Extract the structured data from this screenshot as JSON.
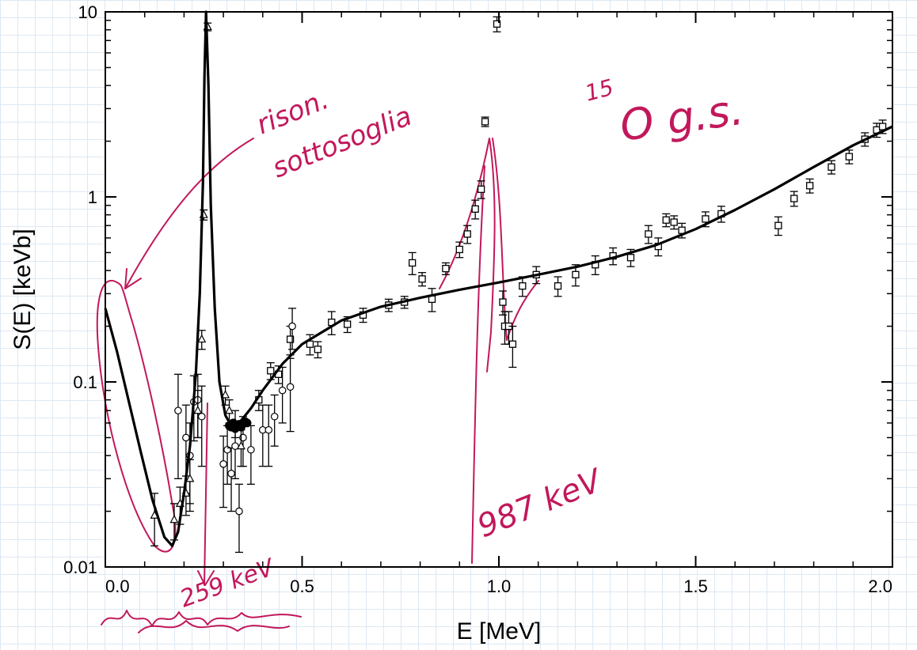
{
  "chart_data": {
    "type": "scatter",
    "xlabel": "E [MeV]",
    "ylabel": "S(E) [keVb]",
    "xlim": [
      0.0,
      2.0
    ],
    "ylim": [
      0.01,
      10
    ],
    "yscale": "log",
    "grid": false,
    "xticks": [
      {
        "value": 0.0,
        "label": "0.0"
      },
      {
        "value": 0.5,
        "label": "0.5"
      },
      {
        "value": 1.0,
        "label": "1.0"
      },
      {
        "value": 1.5,
        "label": "1.5"
      },
      {
        "value": 2.0,
        "label": "2.0"
      }
    ],
    "yticks": [
      {
        "value": 0.01,
        "label": "0.01"
      },
      {
        "value": 0.1,
        "label": "0.1"
      },
      {
        "value": 1,
        "label": "1"
      },
      {
        "value": 10,
        "label": "10"
      }
    ],
    "series": [
      {
        "marker": "square",
        "points": [
          {
            "x": 0.39,
            "y": 0.08,
            "e": 0.01
          },
          {
            "x": 0.42,
            "y": 0.115,
            "e": 0.012
          },
          {
            "x": 0.44,
            "y": 0.11,
            "e": 0.012
          },
          {
            "x": 0.47,
            "y": 0.17,
            "e": 0.03
          },
          {
            "x": 0.52,
            "y": 0.16,
            "e": 0.02
          },
          {
            "x": 0.54,
            "y": 0.15,
            "e": 0.015
          },
          {
            "x": 0.575,
            "y": 0.21,
            "e": 0.03
          },
          {
            "x": 0.615,
            "y": 0.205,
            "e": 0.02
          },
          {
            "x": 0.655,
            "y": 0.23,
            "e": 0.02
          },
          {
            "x": 0.72,
            "y": 0.26,
            "e": 0.02
          },
          {
            "x": 0.76,
            "y": 0.27,
            "e": 0.02
          },
          {
            "x": 0.78,
            "y": 0.44,
            "e": 0.06
          },
          {
            "x": 0.805,
            "y": 0.36,
            "e": 0.03
          },
          {
            "x": 0.83,
            "y": 0.28,
            "e": 0.04
          },
          {
            "x": 0.865,
            "y": 0.41,
            "e": 0.03
          },
          {
            "x": 0.9,
            "y": 0.52,
            "e": 0.05
          },
          {
            "x": 0.92,
            "y": 0.63,
            "e": 0.07
          },
          {
            "x": 0.94,
            "y": 0.86,
            "e": 0.1
          },
          {
            "x": 0.955,
            "y": 1.1,
            "e": 0.12
          },
          {
            "x": 0.965,
            "y": 2.55,
            "e": 0.15
          },
          {
            "x": 0.995,
            "y": 8.6,
            "e": 0.8
          },
          {
            "x": 1.01,
            "y": 0.27,
            "e": 0.04
          },
          {
            "x": 1.015,
            "y": 0.2,
            "e": 0.04
          },
          {
            "x": 1.025,
            "y": 0.2,
            "e": 0.04
          },
          {
            "x": 1.035,
            "y": 0.16,
            "e": 0.04
          },
          {
            "x": 1.06,
            "y": 0.33,
            "e": 0.04
          },
          {
            "x": 1.095,
            "y": 0.38,
            "e": 0.04
          },
          {
            "x": 1.15,
            "y": 0.33,
            "e": 0.04
          },
          {
            "x": 1.195,
            "y": 0.38,
            "e": 0.05
          },
          {
            "x": 1.245,
            "y": 0.43,
            "e": 0.05
          },
          {
            "x": 1.29,
            "y": 0.48,
            "e": 0.05
          },
          {
            "x": 1.335,
            "y": 0.47,
            "e": 0.05
          },
          {
            "x": 1.38,
            "y": 0.63,
            "e": 0.07
          },
          {
            "x": 1.405,
            "y": 0.54,
            "e": 0.06
          },
          {
            "x": 1.425,
            "y": 0.75,
            "e": 0.06
          },
          {
            "x": 1.445,
            "y": 0.73,
            "e": 0.06
          },
          {
            "x": 1.465,
            "y": 0.66,
            "e": 0.06
          },
          {
            "x": 1.525,
            "y": 0.76,
            "e": 0.07
          },
          {
            "x": 1.565,
            "y": 0.81,
            "e": 0.08
          },
          {
            "x": 1.71,
            "y": 0.7,
            "e": 0.08
          },
          {
            "x": 1.75,
            "y": 0.98,
            "e": 0.09
          },
          {
            "x": 1.79,
            "y": 1.15,
            "e": 0.1
          },
          {
            "x": 1.845,
            "y": 1.45,
            "e": 0.12
          },
          {
            "x": 1.89,
            "y": 1.65,
            "e": 0.14
          },
          {
            "x": 1.93,
            "y": 2.05,
            "e": 0.17
          },
          {
            "x": 1.96,
            "y": 2.3,
            "e": 0.2
          },
          {
            "x": 1.975,
            "y": 2.4,
            "e": 0.2
          }
        ]
      },
      {
        "marker": "circle",
        "points": [
          {
            "x": 0.185,
            "y": 0.07,
            "e": 0.04
          },
          {
            "x": 0.205,
            "y": 0.05,
            "e": 0.025
          },
          {
            "x": 0.215,
            "y": 0.04,
            "e": 0.02
          },
          {
            "x": 0.225,
            "y": 0.078,
            "e": 0.03
          },
          {
            "x": 0.235,
            "y": 0.08,
            "e": 0.03
          },
          {
            "x": 0.245,
            "y": 0.065,
            "e": 0.03
          },
          {
            "x": 0.3,
            "y": 0.036,
            "e": 0.015
          },
          {
            "x": 0.31,
            "y": 0.043,
            "e": 0.015
          },
          {
            "x": 0.32,
            "y": 0.032,
            "e": 0.012
          },
          {
            "x": 0.33,
            "y": 0.045,
            "e": 0.015
          },
          {
            "x": 0.34,
            "y": 0.02,
            "e": 0.008
          },
          {
            "x": 0.35,
            "y": 0.05,
            "e": 0.015
          },
          {
            "x": 0.37,
            "y": 0.043,
            "e": 0.015
          },
          {
            "x": 0.4,
            "y": 0.055,
            "e": 0.02
          },
          {
            "x": 0.415,
            "y": 0.055,
            "e": 0.02
          },
          {
            "x": 0.43,
            "y": 0.065,
            "e": 0.02
          },
          {
            "x": 0.45,
            "y": 0.09,
            "e": 0.03
          },
          {
            "x": 0.47,
            "y": 0.094,
            "e": 0.04
          },
          {
            "x": 0.475,
            "y": 0.2,
            "e": 0.05
          }
        ]
      },
      {
        "marker": "triangle",
        "points": [
          {
            "x": 0.125,
            "y": 0.019,
            "e": 0.006
          },
          {
            "x": 0.175,
            "y": 0.018,
            "e": 0.004
          },
          {
            "x": 0.19,
            "y": 0.022,
            "e": 0.005
          },
          {
            "x": 0.205,
            "y": 0.025,
            "e": 0.006
          },
          {
            "x": 0.215,
            "y": 0.03,
            "e": 0.008
          },
          {
            "x": 0.235,
            "y": 0.07,
            "e": 0.02
          },
          {
            "x": 0.245,
            "y": 0.17,
            "e": 0.02
          },
          {
            "x": 0.25,
            "y": 0.8,
            "e": 0.05
          },
          {
            "x": 0.26,
            "y": 8.3,
            "e": 0.4
          },
          {
            "x": 0.305,
            "y": 0.085,
            "e": 0.01
          },
          {
            "x": 0.315,
            "y": 0.07,
            "e": 0.01
          },
          {
            "x": 0.33,
            "y": 0.06,
            "e": 0.01
          },
          {
            "x": 0.345,
            "y": 0.045,
            "e": 0.01
          }
        ]
      },
      {
        "marker": "filled-circle",
        "points": [
          {
            "x": 0.315,
            "y": 0.058
          },
          {
            "x": 0.32,
            "y": 0.057
          },
          {
            "x": 0.325,
            "y": 0.06
          },
          {
            "x": 0.33,
            "y": 0.056
          },
          {
            "x": 0.335,
            "y": 0.058
          },
          {
            "x": 0.34,
            "y": 0.059
          },
          {
            "x": 0.345,
            "y": 0.057
          },
          {
            "x": 0.35,
            "y": 0.06
          },
          {
            "x": 0.355,
            "y": 0.061
          },
          {
            "x": 0.36,
            "y": 0.06
          }
        ]
      },
      {
        "marker": "line",
        "points": [
          {
            "x": 0.0,
            "y": 0.25
          },
          {
            "x": 0.03,
            "y": 0.145
          },
          {
            "x": 0.06,
            "y": 0.078
          },
          {
            "x": 0.09,
            "y": 0.042
          },
          {
            "x": 0.12,
            "y": 0.023
          },
          {
            "x": 0.15,
            "y": 0.0145
          },
          {
            "x": 0.17,
            "y": 0.013
          },
          {
            "x": 0.185,
            "y": 0.0155
          },
          {
            "x": 0.2,
            "y": 0.025
          },
          {
            "x": 0.215,
            "y": 0.045
          },
          {
            "x": 0.23,
            "y": 0.11
          },
          {
            "x": 0.24,
            "y": 0.3
          },
          {
            "x": 0.248,
            "y": 1.2
          },
          {
            "x": 0.252,
            "y": 4.5
          },
          {
            "x": 0.256,
            "y": 10
          },
          {
            "x": 0.262,
            "y": 4.0
          },
          {
            "x": 0.268,
            "y": 0.9
          },
          {
            "x": 0.278,
            "y": 0.25
          },
          {
            "x": 0.29,
            "y": 0.1
          },
          {
            "x": 0.305,
            "y": 0.066
          },
          {
            "x": 0.32,
            "y": 0.058
          },
          {
            "x": 0.34,
            "y": 0.06
          },
          {
            "x": 0.37,
            "y": 0.072
          },
          {
            "x": 0.4,
            "y": 0.09
          },
          {
            "x": 0.45,
            "y": 0.125
          },
          {
            "x": 0.5,
            "y": 0.16
          },
          {
            "x": 0.6,
            "y": 0.215
          },
          {
            "x": 0.7,
            "y": 0.255
          },
          {
            "x": 0.8,
            "y": 0.285
          },
          {
            "x": 0.9,
            "y": 0.315
          },
          {
            "x": 1.0,
            "y": 0.345
          },
          {
            "x": 1.1,
            "y": 0.38
          },
          {
            "x": 1.2,
            "y": 0.42
          },
          {
            "x": 1.3,
            "y": 0.475
          },
          {
            "x": 1.4,
            "y": 0.55
          },
          {
            "x": 1.5,
            "y": 0.67
          },
          {
            "x": 1.6,
            "y": 0.85
          },
          {
            "x": 1.7,
            "y": 1.1
          },
          {
            "x": 1.8,
            "y": 1.45
          },
          {
            "x": 1.9,
            "y": 1.9
          },
          {
            "x": 2.0,
            "y": 2.4
          }
        ]
      }
    ],
    "annotations": [
      {
        "text_line1": "rison.",
        "text_line2": "sottosoglia"
      },
      {
        "text_sup": "15",
        "text": "O g.s."
      },
      {
        "text": "987 keV"
      },
      {
        "text": "259 keV"
      }
    ]
  }
}
